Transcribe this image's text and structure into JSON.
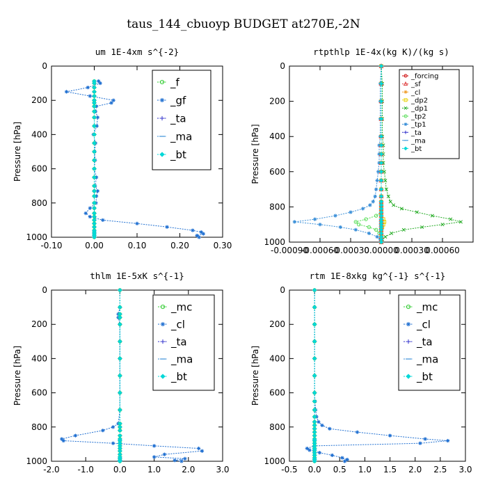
{
  "figure": {
    "title": "taus_144_cbuoyp  BUDGET at270E,-2N"
  },
  "chart_data": [
    {
      "type": "line",
      "title": "um  1E-4xm s^{-2}",
      "xlabel": "",
      "ylabel": "Pressure [hPa]",
      "xlim": [
        -0.1,
        0.3
      ],
      "ylim": [
        1000,
        0
      ],
      "xticks": [
        "-0.10",
        "0.00",
        "0.10",
        "0.20",
        "0.30"
      ],
      "yticks": [
        "0",
        "200",
        "400",
        "600",
        "800",
        "1000"
      ],
      "legend": {
        "position": "top-right",
        "font_size": 15
      },
      "y": [
        88,
        100,
        125,
        150,
        175,
        200,
        215,
        235,
        265,
        300,
        350,
        400,
        450,
        500,
        550,
        600,
        650,
        700,
        730,
        760,
        800,
        830,
        860,
        880,
        900,
        920,
        940,
        960,
        970,
        980,
        990,
        1000
      ],
      "series": [
        {
          "name": "_f",
          "color": "#33cc33",
          "marker": "circle",
          "values": [
            0.0,
            0.0,
            0.0,
            0.0,
            0.0,
            0.0,
            0.0,
            0.0,
            0.0,
            0.0,
            0.0,
            0.0,
            0.0,
            0.0,
            0.0,
            0.0,
            0.0,
            0.0,
            0.0,
            0.0,
            0.0,
            0.0,
            0.0,
            0.0,
            0.0,
            0.0,
            0.0,
            0.0,
            0.0,
            0.0,
            0.0,
            0.0
          ]
        },
        {
          "name": "_gf",
          "color": "#1f6fd1",
          "marker": "star",
          "values": [
            0.01,
            0.014,
            -0.015,
            -0.065,
            -0.01,
            0.045,
            0.04,
            0.005,
            0.003,
            0.008,
            0.006,
            -0.002,
            0.003,
            0.001,
            0.002,
            0.0,
            0.005,
            0.002,
            0.008,
            0.005,
            0.004,
            -0.01,
            -0.02,
            -0.01,
            0.02,
            0.1,
            0.17,
            0.23,
            0.25,
            0.255,
            0.24,
            0.245
          ]
        },
        {
          "name": "_ta",
          "color": "#3333cc",
          "marker": "plus",
          "values": [
            0.0,
            0.0,
            0.0,
            0.0,
            0.0,
            0.0,
            0.0,
            0.0,
            0.0,
            0.0,
            0.0,
            0.0,
            0.0,
            0.0,
            0.0,
            0.0,
            0.0,
            0.0,
            0.0,
            0.0,
            0.0,
            0.0,
            0.0,
            0.0,
            0.0,
            0.0,
            0.0,
            0.0,
            0.0,
            0.0,
            0.0,
            0.0
          ]
        },
        {
          "name": "_ma",
          "color": "#3a8fd8",
          "marker": "dash",
          "values": [
            0.0,
            0.0,
            0.0,
            0.0,
            0.0,
            0.0,
            0.0,
            0.0,
            0.0,
            0.0,
            0.0,
            0.0,
            0.0,
            0.0,
            0.0,
            0.0,
            0.0,
            0.0,
            0.0,
            0.0,
            0.0,
            0.0,
            0.0,
            0.0,
            0.0,
            0.0,
            0.0,
            0.0,
            0.0,
            0.0,
            0.0,
            0.0
          ]
        },
        {
          "name": "_bt",
          "color": "#00d8d8",
          "marker": "diamond",
          "values": [
            0.0,
            0.0,
            0.0,
            0.0,
            0.0,
            0.0,
            0.0,
            0.0,
            0.0,
            0.0,
            0.0,
            0.0,
            0.0,
            0.0,
            0.0,
            0.0,
            0.0,
            0.0,
            0.0,
            0.0,
            0.0,
            0.0,
            0.0,
            0.0,
            0.0,
            0.0,
            0.0,
            0.0,
            0.0,
            0.0,
            0.0,
            0.0
          ]
        }
      ]
    },
    {
      "type": "line",
      "title": "rtpthlp  1E-4x(kg K)/(kg s)",
      "xlabel": "",
      "ylabel": "Pressure [hPa]",
      "xlim": [
        -0.0009,
        0.0009
      ],
      "ylim": [
        1000,
        0
      ],
      "xticks": [
        "-0.00090",
        "-0.00060",
        "-0.00030",
        "0.00000",
        "0.00030",
        "0.00060"
      ],
      "yticks": [
        "0",
        "200",
        "400",
        "600",
        "800",
        "1000"
      ],
      "legend": {
        "position": "top-right",
        "font_size": 10
      },
      "y": [
        0,
        100,
        200,
        300,
        400,
        450,
        500,
        550,
        600,
        650,
        700,
        740,
        770,
        790,
        810,
        830,
        850,
        870,
        885,
        900,
        915,
        930,
        950,
        970,
        985,
        1000
      ],
      "series": [
        {
          "name": "_forcing",
          "color": "#cc0000",
          "marker": "circle",
          "values": [
            0,
            0,
            0,
            0,
            0,
            0,
            0,
            0,
            0,
            0,
            0,
            0,
            0,
            0,
            0,
            0,
            0,
            0,
            0,
            0,
            0,
            0,
            0,
            0,
            0,
            0
          ]
        },
        {
          "name": "_sf",
          "color": "#e04040",
          "marker": "tri",
          "values": [
            0,
            0,
            0,
            0,
            0,
            0,
            0,
            0,
            0,
            0,
            0,
            0,
            0,
            0,
            0,
            0,
            0,
            0,
            0,
            0,
            0,
            0,
            0,
            0,
            0,
            0
          ]
        },
        {
          "name": "_cl",
          "color": "#f0a030",
          "marker": "star",
          "values": [
            0,
            0,
            0,
            0,
            0,
            0,
            0,
            0,
            0,
            0,
            0,
            0,
            0,
            0,
            0,
            0,
            0,
            0,
            0,
            0,
            0,
            0,
            0,
            0,
            0,
            0
          ]
        },
        {
          "name": "_dp2",
          "color": "#e8d000",
          "marker": "square",
          "values": [
            0,
            0,
            0,
            0,
            0,
            0,
            0,
            0,
            0,
            0,
            0,
            0,
            0,
            0,
            0,
            0,
            0,
            2e-05,
            3e-05,
            2e-05,
            1e-05,
            0,
            0,
            0,
            0,
            0
          ]
        },
        {
          "name": "_dp1",
          "color": "#22aa22",
          "marker": "x",
          "values": [
            0,
            1e-05,
            1e-05,
            1e-05,
            1e-05,
            2e-05,
            2e-05,
            2e-05,
            3e-05,
            4e-05,
            5e-05,
            7e-05,
            9e-05,
            0.00012,
            0.0002,
            0.00035,
            0.0005,
            0.00068,
            0.00078,
            0.0006,
            0.0004,
            0.00022,
            0.0001,
            4e-05,
            1e-05,
            0
          ]
        },
        {
          "name": "_tp2",
          "color": "#55dd55",
          "marker": "circle",
          "values": [
            0,
            0,
            0,
            0,
            0,
            0,
            0,
            0,
            0,
            0,
            0,
            0,
            0,
            0,
            0,
            0,
            -5e-05,
            -0.00015,
            -0.00025,
            -0.00022,
            -0.00012,
            -5e-05,
            -2e-05,
            0,
            0,
            0
          ]
        },
        {
          "name": "_tp1",
          "color": "#3a8fd8",
          "marker": "star",
          "values": [
            0,
            -1e-05,
            -1e-05,
            -1e-05,
            -1e-05,
            -2e-05,
            -2e-05,
            -2e-05,
            -3e-05,
            -4e-05,
            -5e-05,
            -6e-05,
            -8e-05,
            -0.00011,
            -0.00018,
            -0.0003,
            -0.00045,
            -0.00065,
            -0.00085,
            -0.0006,
            -0.0004,
            -0.00025,
            -0.00012,
            -4e-05,
            -1e-05,
            0
          ]
        },
        {
          "name": "_ta",
          "color": "#3333cc",
          "marker": "plus",
          "values": [
            0,
            0,
            0,
            0,
            0,
            0,
            0,
            0,
            0,
            0,
            0,
            0,
            0,
            0,
            0,
            0,
            0,
            0,
            0,
            0,
            0,
            0,
            0,
            0,
            0,
            0
          ]
        },
        {
          "name": "_ma",
          "color": "#4aa0e0",
          "marker": "dash",
          "values": [
            0,
            0,
            0,
            0,
            0,
            0,
            0,
            0,
            0,
            0,
            0,
            0,
            0,
            0,
            0,
            0,
            0,
            0,
            0,
            0,
            0,
            0,
            0,
            0,
            0,
            0
          ]
        },
        {
          "name": "_bt",
          "color": "#00d8d8",
          "marker": "diamond",
          "values": [
            0,
            0,
            0,
            0,
            0,
            0,
            0,
            0,
            0,
            0,
            0,
            0,
            0,
            0,
            0,
            0,
            0,
            0,
            0,
            0,
            0,
            0,
            0,
            0,
            0,
            0
          ]
        }
      ]
    },
    {
      "type": "line",
      "title": "thlm  1E-5xK s^{-1}",
      "xlabel": "",
      "ylabel": "Pressure [hPa]",
      "xlim": [
        -2.0,
        3.0
      ],
      "ylim": [
        1000,
        0
      ],
      "xticks": [
        "-2.0",
        "-1.0",
        "0.0",
        "1.0",
        "2.0",
        "3.0"
      ],
      "yticks": [
        "0",
        "200",
        "400",
        "600",
        "800",
        "1000"
      ],
      "legend": {
        "position": "top-right",
        "font_size": 15
      },
      "y": [
        0,
        100,
        140,
        160,
        200,
        300,
        400,
        500,
        600,
        700,
        780,
        800,
        820,
        850,
        870,
        880,
        895,
        910,
        925,
        940,
        960,
        975,
        985,
        995,
        1000
      ],
      "series": [
        {
          "name": "_mc",
          "color": "#33cc33",
          "marker": "circle",
          "values": [
            0,
            0,
            0,
            0,
            0,
            0,
            0,
            0,
            0,
            0,
            0,
            0,
            0,
            0,
            0,
            0,
            0,
            0,
            0,
            0,
            0,
            0,
            0,
            0,
            0
          ]
        },
        {
          "name": "_cl",
          "color": "#1f6fd1",
          "marker": "star",
          "values": [
            0.0,
            0.0,
            -0.05,
            -0.05,
            0.0,
            0.0,
            0.0,
            0.0,
            0.0,
            0.0,
            -0.05,
            -0.2,
            -0.5,
            -1.3,
            -1.7,
            -1.65,
            -0.2,
            1.0,
            2.3,
            2.4,
            1.3,
            1.0,
            1.9,
            1.6,
            1.8
          ]
        },
        {
          "name": "_ta",
          "color": "#3333cc",
          "marker": "plus",
          "values": [
            0,
            0,
            0,
            0,
            0,
            0,
            0,
            0,
            0,
            0,
            0,
            0,
            0,
            0,
            0,
            0,
            0,
            0,
            0,
            0,
            0,
            0,
            0,
            0,
            0
          ]
        },
        {
          "name": "_ma",
          "color": "#3a8fd8",
          "marker": "dash",
          "values": [
            0,
            0,
            0,
            0,
            0,
            0,
            0,
            0,
            0,
            0,
            0,
            0,
            0,
            0,
            0,
            0,
            0,
            0,
            0,
            0,
            0,
            0,
            0,
            0,
            0
          ]
        },
        {
          "name": "_bt",
          "color": "#00d8d8",
          "marker": "diamond",
          "values": [
            0,
            0,
            0,
            0,
            0,
            0,
            0,
            0,
            0,
            0,
            0,
            0,
            0,
            0,
            0,
            0,
            0,
            0,
            0,
            0,
            0,
            0,
            0,
            0,
            0
          ]
        }
      ]
    },
    {
      "type": "line",
      "title": "rtm  1E-8xkg kg^{-1} s^{-1}",
      "xlabel": "",
      "ylabel": "Pressure [hPa]",
      "xlim": [
        -0.5,
        3.0
      ],
      "ylim": [
        1000,
        0
      ],
      "xticks": [
        "-0.5",
        "0.0",
        "0.5",
        "1.0",
        "1.5",
        "2.0",
        "2.5",
        "3.0"
      ],
      "yticks": [
        "0",
        "200",
        "400",
        "600",
        "800",
        "1000"
      ],
      "legend": {
        "position": "top-right",
        "font_size": 15
      },
      "y": [
        0,
        100,
        200,
        300,
        400,
        500,
        600,
        650,
        700,
        740,
        770,
        790,
        810,
        830,
        850,
        870,
        880,
        895,
        910,
        925,
        935,
        950,
        965,
        980,
        990,
        1000
      ],
      "series": [
        {
          "name": "_mc",
          "color": "#33cc33",
          "marker": "circle",
          "values": [
            0,
            0,
            0,
            0,
            0,
            0,
            0,
            0,
            0,
            0,
            0,
            0,
            0,
            0,
            0,
            0,
            0,
            0,
            0,
            0,
            0,
            0,
            0,
            0,
            0,
            0
          ]
        },
        {
          "name": "_cl",
          "color": "#1f6fd1",
          "marker": "star",
          "values": [
            0.0,
            0.0,
            0.0,
            0.0,
            0.0,
            0.0,
            0.0,
            0.01,
            0.02,
            0.04,
            0.08,
            0.15,
            0.3,
            0.85,
            1.5,
            2.2,
            2.65,
            2.1,
            0.0,
            -0.15,
            -0.1,
            0.1,
            0.35,
            0.55,
            0.65,
            0.6
          ]
        },
        {
          "name": "_ta",
          "color": "#3333cc",
          "marker": "plus",
          "values": [
            0,
            0,
            0,
            0,
            0,
            0,
            0,
            0,
            0,
            0,
            0,
            0,
            0,
            0,
            0,
            0,
            0,
            0,
            0,
            0,
            0,
            0,
            0,
            0,
            0,
            0
          ]
        },
        {
          "name": "_ma",
          "color": "#3a8fd8",
          "marker": "dash",
          "values": [
            0,
            0,
            0,
            0,
            0,
            0,
            0,
            0,
            0,
            0,
            0,
            0,
            0,
            0,
            0,
            0,
            0,
            0,
            0,
            0,
            0,
            0,
            0,
            0,
            0,
            0
          ]
        },
        {
          "name": "_bt",
          "color": "#00d8d8",
          "marker": "diamond",
          "values": [
            0,
            0,
            0,
            0,
            0,
            0,
            0,
            0,
            0,
            0,
            0,
            0,
            0,
            0,
            0,
            0,
            0,
            0,
            0,
            0,
            0,
            0,
            0,
            0,
            0,
            0
          ]
        }
      ]
    }
  ]
}
